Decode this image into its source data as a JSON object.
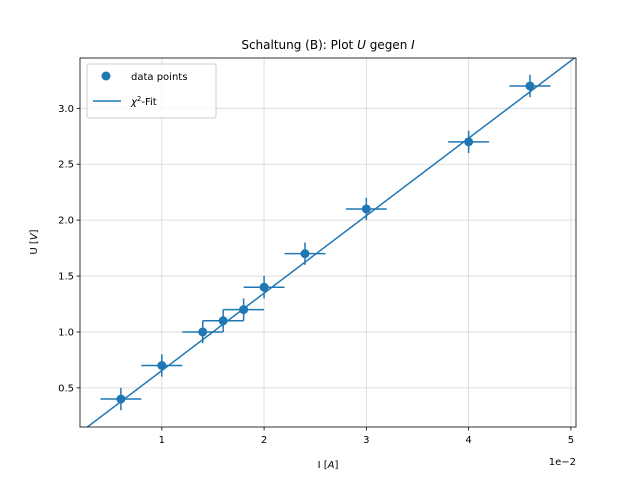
{
  "chart_data": {
    "type": "scatter",
    "title": "Schaltung (B): Plot U gegen I",
    "title_parts": {
      "prefix": "Schaltung (B): Plot ",
      "u": "U",
      "mid": " gegen ",
      "i": "I"
    },
    "xlabel_parts": {
      "prefix": "I [",
      "var": "A",
      "suffix": "]"
    },
    "ylabel_parts": {
      "prefix": "U [",
      "var": "V",
      "suffix": "]"
    },
    "x_offset_label": "1e−2",
    "xlim": [
      0.002,
      0.0505
    ],
    "ylim": [
      0.15,
      3.45
    ],
    "x_ticks": [
      0.01,
      0.02,
      0.03,
      0.04,
      0.05
    ],
    "x_tick_labels": [
      "1",
      "2",
      "3",
      "4",
      "5"
    ],
    "y_ticks": [
      0.5,
      1.0,
      1.5,
      2.0,
      2.5,
      3.0
    ],
    "y_tick_labels": [
      "0.5",
      "1.0",
      "1.5",
      "2.0",
      "2.5",
      "3.0"
    ],
    "grid": true,
    "legend_position": "top-left",
    "color": "#1f77b4",
    "series": [
      {
        "name": "data points",
        "kind": "errorbar-scatter",
        "x": [
          0.006,
          0.01,
          0.014,
          0.016,
          0.018,
          0.02,
          0.024,
          0.03,
          0.04,
          0.046
        ],
        "y": [
          0.4,
          0.7,
          1.0,
          1.1,
          1.2,
          1.4,
          1.7,
          2.1,
          2.7,
          3.2
        ],
        "x_err": [
          0.002,
          0.002,
          0.002,
          0.002,
          0.002,
          0.002,
          0.002,
          0.002,
          0.002,
          0.002
        ],
        "y_err": [
          0.1,
          0.1,
          0.1,
          0.1,
          0.1,
          0.1,
          0.1,
          0.1,
          0.1,
          0.1
        ]
      },
      {
        "name": "χ²-Fit",
        "name_parts": {
          "chi": "χ",
          "sup": "2",
          "suffix": "-Fit"
        },
        "kind": "line",
        "x": [
          0.002,
          0.0505
        ],
        "y": [
          0.1,
          3.46
        ]
      }
    ]
  }
}
